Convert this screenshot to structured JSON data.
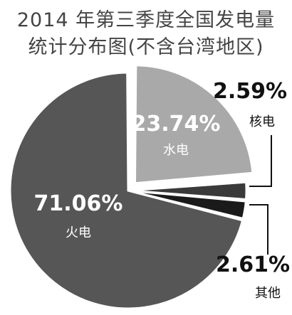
{
  "chart_data": {
    "type": "pie",
    "title_lines": [
      "2014 年第三季度全国发电量",
      "统计分布图(不含台湾地区)"
    ],
    "slices": [
      {
        "label": "水电",
        "value": 23.74,
        "value_text": "23.74%",
        "color": "#a9a9a9",
        "label_color": "#ffffff",
        "exploded": true
      },
      {
        "label": "核电",
        "value": 2.59,
        "value_text": "2.59%",
        "color": "#3a3a3a",
        "label_color": "#111111",
        "exploded": false
      },
      {
        "label": "其他",
        "value": 2.61,
        "value_text": "2.61%",
        "color": "#1a1a1a",
        "label_color": "#111111",
        "exploded": false
      },
      {
        "label": "火电",
        "value": 71.06,
        "value_text": "71.06%",
        "color": "#565656",
        "label_color": "#ffffff",
        "exploded": false
      }
    ],
    "legend": "none",
    "grid": false
  }
}
